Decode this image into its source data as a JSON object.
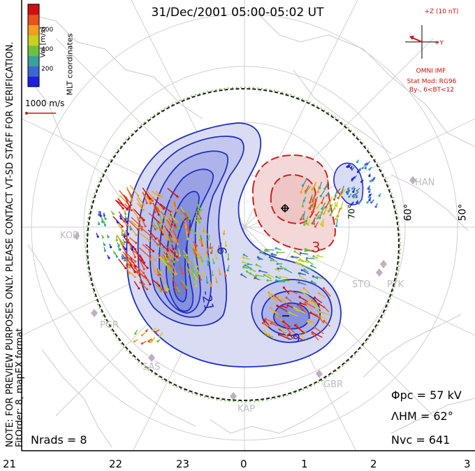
{
  "title": "31/Dec/2001 05:00-05:02 UT",
  "side_note_line1": "NOTE: FOR PREVIEW PURPOSES ONLY. PLEASE CONTACT VT-SD STAFF FOR VERIFICATION.",
  "side_note_line2": "FitOrder: 8, mapEX format",
  "coordinate_system": "MLT coordinates",
  "colorbar": {
    "label": "Vel [m/s]",
    "ticks": [
      "600",
      "400",
      "200"
    ],
    "colors": [
      "#2020e0",
      "#3a6ad0",
      "#3aa0a0",
      "#70c040",
      "#c8d020",
      "#f0a020",
      "#e85020",
      "#d01010"
    ]
  },
  "reference_vector": "1000 m/s",
  "imf": {
    "z_label": "+Z (10 nT)",
    "y_label": "+Y",
    "source": "OMNI IMF",
    "model": "Stat Mod: RG96",
    "condition": "By-, 6<BT<12"
  },
  "contour_labels": [
    "-6",
    "-21",
    "-9",
    "3"
  ],
  "latitude_labels": [
    "60°",
    "50°",
    "70°"
  ],
  "stations": [
    "KOD",
    "HAN",
    "STO",
    "PYK",
    "PGR",
    "SAS",
    "KAP",
    "GBR"
  ],
  "stats": {
    "potential": "Φpc = 57 kV",
    "hm_boundary": "ΛHM = 62°",
    "nrads": "Nrads = 8",
    "nvc": "Nvc = 641"
  },
  "mlt_ticks": [
    "21",
    "22",
    "23",
    "0",
    "1",
    "2",
    "3"
  ]
}
